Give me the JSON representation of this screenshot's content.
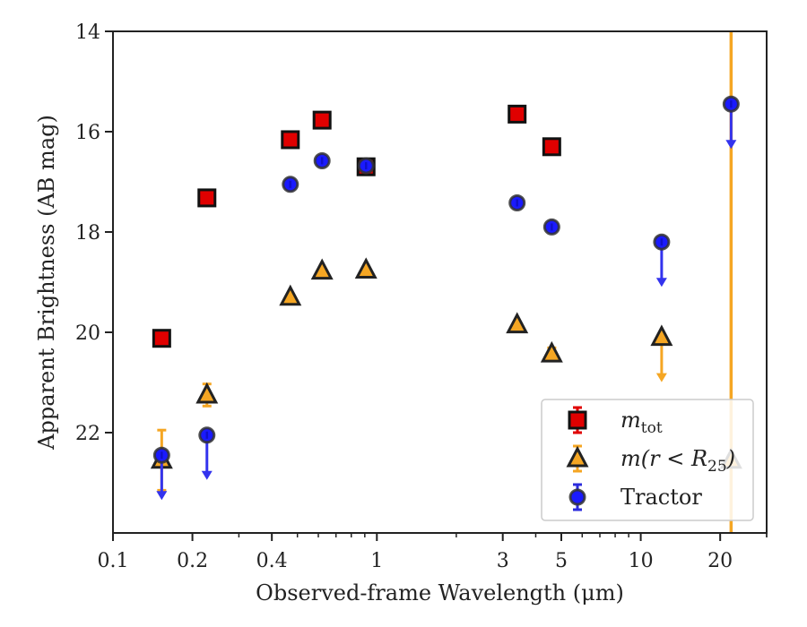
{
  "chart_data": {
    "type": "scatter",
    "xlabel": "Observed-frame Wavelength (μm)",
    "ylabel": "Apparent Brightness (AB mag)",
    "xscale": "log",
    "xlim": [
      0.1,
      30
    ],
    "ylim": [
      24.0,
      14.0
    ],
    "y_inverted": true,
    "grid": false,
    "legend_position": "lower-right",
    "x_ticks": [
      {
        "value": 0.1,
        "label": "0.1"
      },
      {
        "value": 0.2,
        "label": "0.2"
      },
      {
        "value": 0.4,
        "label": "0.4"
      },
      {
        "value": 1,
        "label": "1"
      },
      {
        "value": 3,
        "label": "3"
      },
      {
        "value": 5,
        "label": "5"
      },
      {
        "value": 10,
        "label": "10"
      },
      {
        "value": 20,
        "label": "20"
      }
    ],
    "y_ticks": [
      {
        "value": 14,
        "label": "14"
      },
      {
        "value": 16,
        "label": "16"
      },
      {
        "value": 18,
        "label": "18"
      },
      {
        "value": 20,
        "label": "20"
      },
      {
        "value": 22,
        "label": "22"
      }
    ],
    "vertical_line": {
      "x": 22,
      "color": "#f5a623"
    },
    "series": [
      {
        "name": "m_tot",
        "marker": "square",
        "color": "#e00000",
        "points": [
          {
            "x": 0.153,
            "y": 20.12
          },
          {
            "x": 0.227,
            "y": 17.32
          },
          {
            "x": 0.47,
            "y": 16.16
          },
          {
            "x": 0.62,
            "y": 15.77
          },
          {
            "x": 0.91,
            "y": 16.7
          },
          {
            "x": 3.4,
            "y": 15.65
          },
          {
            "x": 4.6,
            "y": 16.3
          }
        ]
      },
      {
        "name": "m(r<R25)",
        "marker": "triangle",
        "color": "#f5a623",
        "points": [
          {
            "x": 0.153,
            "y": 22.55,
            "err": 0.6
          },
          {
            "x": 0.227,
            "y": 21.25,
            "err": 0.22
          },
          {
            "x": 0.47,
            "y": 19.3
          },
          {
            "x": 0.62,
            "y": 18.78
          },
          {
            "x": 0.91,
            "y": 18.76
          },
          {
            "x": 3.4,
            "y": 19.85
          },
          {
            "x": 4.6,
            "y": 20.43,
            "err": 0.12
          },
          {
            "x": 12,
            "y": 20.1,
            "upper_limit": true
          },
          {
            "x": 22,
            "y": 22.55
          }
        ]
      },
      {
        "name": "Tractor",
        "marker": "circle",
        "color": "#1a1aff",
        "points": [
          {
            "x": 0.153,
            "y": 22.45,
            "upper_limit": true
          },
          {
            "x": 0.227,
            "y": 22.05,
            "upper_limit": true
          },
          {
            "x": 0.47,
            "y": 17.05
          },
          {
            "x": 0.62,
            "y": 16.58
          },
          {
            "x": 0.91,
            "y": 16.68
          },
          {
            "x": 3.4,
            "y": 17.42
          },
          {
            "x": 4.6,
            "y": 17.9
          },
          {
            "x": 12,
            "y": 18.2,
            "upper_limit": true
          },
          {
            "x": 22,
            "y": 15.45,
            "upper_limit": true
          }
        ]
      }
    ],
    "legend": [
      {
        "marker": "square",
        "color": "#e00000",
        "label_main": "m",
        "label_sub": "tot",
        "label_tail": ""
      },
      {
        "marker": "triangle",
        "color": "#f5a623",
        "label_main": "m(r < R",
        "label_sub": "25",
        "label_tail": ")"
      },
      {
        "marker": "circle",
        "color": "#1a1aff",
        "label_main": "Tractor",
        "label_sub": "",
        "label_tail": ""
      }
    ]
  }
}
